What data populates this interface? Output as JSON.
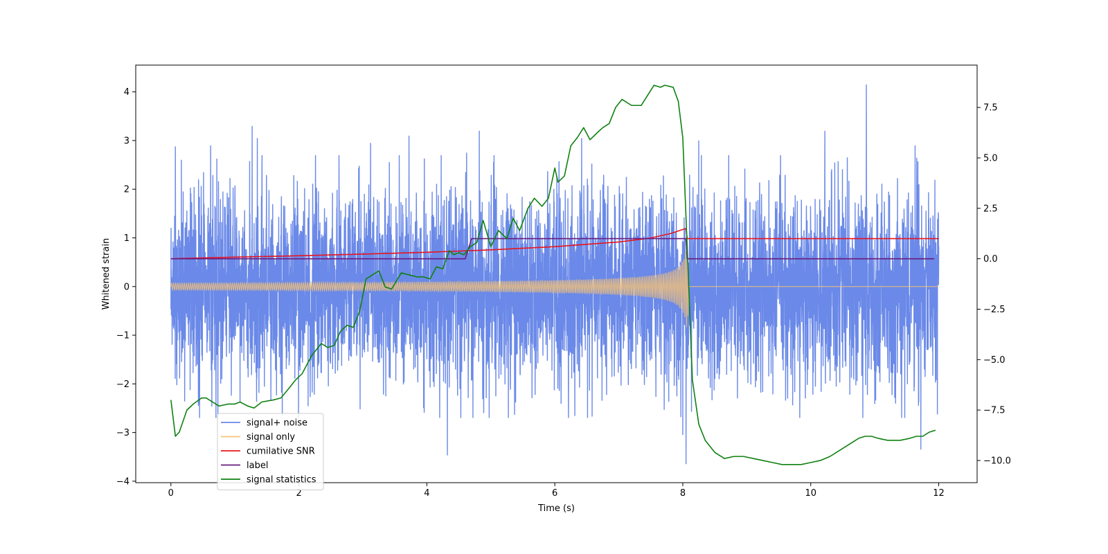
{
  "chart_data": {
    "type": "line",
    "title": "",
    "xlabel": "Time (s)",
    "ylabel": "Whitened strain",
    "y2label": "",
    "xlim": [
      -0.55,
      12.6
    ],
    "ylim": [
      -4.03,
      4.55
    ],
    "y2lim": [
      -11.1,
      9.6
    ],
    "x_ticks": [
      0,
      2,
      4,
      6,
      8,
      10,
      12
    ],
    "y_ticks": [
      -4,
      -3,
      -2,
      -1,
      0,
      1,
      2,
      3,
      4
    ],
    "y2_ticks": [
      -10.0,
      -7.5,
      -5.0,
      -2.5,
      0.0,
      2.5,
      5.0,
      7.5
    ],
    "y2_tick_labels": [
      "−10.0",
      "−7.5",
      "−5.0",
      "−2.5",
      "0.0",
      "2.5",
      "5.0",
      "7.5"
    ],
    "legend_position": "lower-left",
    "grid": false,
    "series": [
      {
        "name": "signal+ noise",
        "axis": "left",
        "color": "#6a89e8",
        "kind": "noise",
        "x_range": [
          0,
          12
        ],
        "sigma": 0.95,
        "peaks": [
          [
            0.07,
            2.88
          ],
          [
            0.62,
            2.9
          ],
          [
            1.27,
            3.3
          ],
          [
            1.35,
            3.05
          ],
          [
            3.12,
            2.95
          ],
          [
            3.72,
            3.1
          ],
          [
            4.32,
            -3.47
          ],
          [
            4.62,
            2.75
          ],
          [
            4.82,
            3.2
          ],
          [
            6.42,
            3.05
          ],
          [
            8.0,
            -3.05
          ],
          [
            8.05,
            -3.65
          ],
          [
            8.25,
            3.0
          ],
          [
            10.22,
            3.2
          ],
          [
            10.87,
            4.15
          ],
          [
            11.63,
            2.9
          ],
          [
            11.72,
            -3.35
          ]
        ]
      },
      {
        "name": "signal only",
        "axis": "left",
        "color": "#f5c276",
        "kind": "chirp",
        "t_merge": 8.07,
        "amp_start": 0.07,
        "amp_end": 0.95
      },
      {
        "name": "cumilative SNR",
        "axis": "right",
        "color": "#e8141e",
        "x": [
          0,
          1,
          2,
          3,
          4,
          5,
          6,
          7,
          7.5,
          7.8,
          8.0,
          8.05,
          8.07,
          12.0
        ],
        "values": [
          0.0,
          0.08,
          0.15,
          0.23,
          0.32,
          0.44,
          0.6,
          0.83,
          1.03,
          1.24,
          1.45,
          1.5,
          1.0,
          1.0
        ]
      },
      {
        "name": "label",
        "axis": "right",
        "color": "#6a1b7c",
        "x": [
          0,
          4.6,
          4.7,
          8.05,
          8.07,
          11.93
        ],
        "values": [
          0.0,
          0.0,
          1.0,
          1.0,
          0.0,
          0.0
        ]
      },
      {
        "name": "signal statistics",
        "axis": "right",
        "color": "#0e8010",
        "x": [
          0.0,
          0.07,
          0.13,
          0.25,
          0.35,
          0.48,
          0.55,
          0.65,
          0.75,
          0.9,
          1.0,
          1.08,
          1.2,
          1.3,
          1.42,
          1.6,
          1.72,
          1.85,
          1.95,
          2.05,
          2.2,
          2.35,
          2.45,
          2.55,
          2.65,
          2.75,
          2.85,
          2.95,
          3.05,
          3.15,
          3.25,
          3.35,
          3.45,
          3.6,
          3.72,
          3.85,
          3.95,
          4.05,
          4.15,
          4.25,
          4.35,
          4.42,
          4.5,
          4.58,
          4.68,
          4.78,
          4.88,
          5.0,
          5.12,
          5.25,
          5.35,
          5.45,
          5.58,
          5.68,
          5.8,
          5.9,
          6.0,
          6.05,
          6.15,
          6.25,
          6.35,
          6.45,
          6.55,
          6.68,
          6.75,
          6.85,
          6.95,
          7.05,
          7.2,
          7.35,
          7.45,
          7.55,
          7.65,
          7.72,
          7.85,
          7.93,
          8.0,
          8.07,
          8.15,
          8.25,
          8.35,
          8.5,
          8.65,
          8.8,
          8.95,
          9.1,
          9.25,
          9.4,
          9.55,
          9.7,
          9.85,
          10.0,
          10.15,
          10.3,
          10.45,
          10.6,
          10.75,
          10.85,
          10.95,
          11.05,
          11.2,
          11.3,
          11.4,
          11.55,
          11.65,
          11.75,
          11.85,
          11.95
        ],
        "values": [
          -7.0,
          -8.8,
          -8.6,
          -7.5,
          -7.2,
          -6.9,
          -6.9,
          -7.1,
          -7.3,
          -7.2,
          -7.2,
          -7.1,
          -7.3,
          -7.4,
          -7.1,
          -7.0,
          -6.9,
          -6.4,
          -6.0,
          -5.7,
          -4.8,
          -4.2,
          -4.4,
          -4.3,
          -3.6,
          -3.3,
          -3.4,
          -2.6,
          -1.0,
          -0.8,
          -0.6,
          -1.4,
          -1.5,
          -0.7,
          -0.8,
          -0.9,
          -0.9,
          -1.0,
          -0.4,
          -0.5,
          0.4,
          0.2,
          0.3,
          0.2,
          0.6,
          0.8,
          1.9,
          0.6,
          1.4,
          1.0,
          2.0,
          1.4,
          2.5,
          3.0,
          2.6,
          3.0,
          4.5,
          3.8,
          4.1,
          5.6,
          6.0,
          6.5,
          5.9,
          6.3,
          6.5,
          6.7,
          7.5,
          7.9,
          7.6,
          7.6,
          8.1,
          8.6,
          8.5,
          8.6,
          8.5,
          7.8,
          6.0,
          0.5,
          -6.0,
          -8.2,
          -9.0,
          -9.6,
          -9.9,
          -9.8,
          -9.8,
          -9.9,
          -10.0,
          -10.1,
          -10.2,
          -10.2,
          -10.2,
          -10.1,
          -10.0,
          -9.8,
          -9.5,
          -9.2,
          -8.9,
          -8.8,
          -8.8,
          -8.9,
          -9.0,
          -9.0,
          -9.0,
          -8.9,
          -8.8,
          -8.8,
          -8.6,
          -8.5
        ]
      }
    ]
  }
}
